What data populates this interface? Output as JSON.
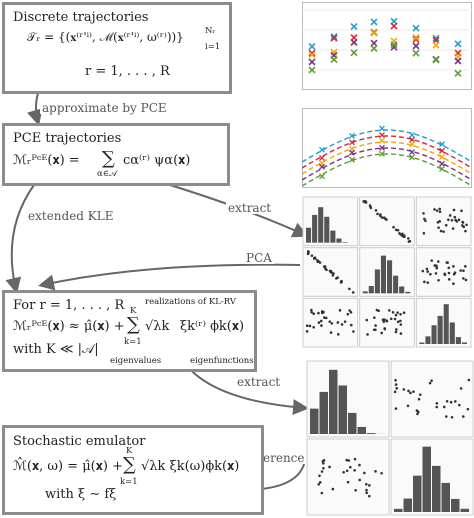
{
  "box1": {
    "title": "Discrete trajectories",
    "formula": "𝒯ᵣ = {(𝐱⁽ʳ'ⁱ⁾, ℳ(𝐱⁽ʳ'ⁱ⁾, ω⁽ʳ⁾))}",
    "formula_sup": "Nᵣ",
    "formula_sub": "i=1",
    "range": "r = 1, . . . , R"
  },
  "arrow_labels": {
    "approximate": "approximate by PCE",
    "extended_kle": "extended KLE",
    "extract1": "extract",
    "pca": "PCA",
    "extract2": "extract",
    "inference": "inference"
  },
  "box2": {
    "title": "PCE trajectories",
    "lhs": "ℳᵣᴾᶜᴱ(𝐱) =",
    "sum": "∑",
    "sum_sub": "α∈𝒜",
    "rhs": "cα⁽ʳ⁾ ψα(𝐱)"
  },
  "box3": {
    "line1": "For r = 1, . . . , R",
    "lhs": "ℳᵣᴾᶜᴱ(𝐱) ≈ μ̂(𝐱) +",
    "sum": "∑",
    "sum_sup": "K",
    "sum_sub": "k=1",
    "sqrt": "√λk",
    "xi": "ξk⁽ʳ⁾ ϕk(𝐱)",
    "line3": "with K ≪ |𝒜|",
    "ann_realizations": "realizations of KL-RV",
    "ann_eigenvalues": "eigenvalues",
    "ann_eigenfunctions": "eigenfunctions"
  },
  "box4": {
    "title": "Stochastic emulator",
    "lhs": "ℳ̂(𝐱, ω) = μ̂(𝐱) +",
    "sum": "∑",
    "sum_sup": "K",
    "sum_sub": "k=1",
    "rhs": "√λk ξk(ω)ϕk(𝐱)",
    "line3": "with ξ ∼ fξ"
  },
  "colors": {
    "box_border": "#8c8c8c",
    "arrow": "#666666",
    "series": [
      "#1f9fd6",
      "#d7263d",
      "#f2a900",
      "#7a2f8f",
      "#5aa02c"
    ]
  }
}
